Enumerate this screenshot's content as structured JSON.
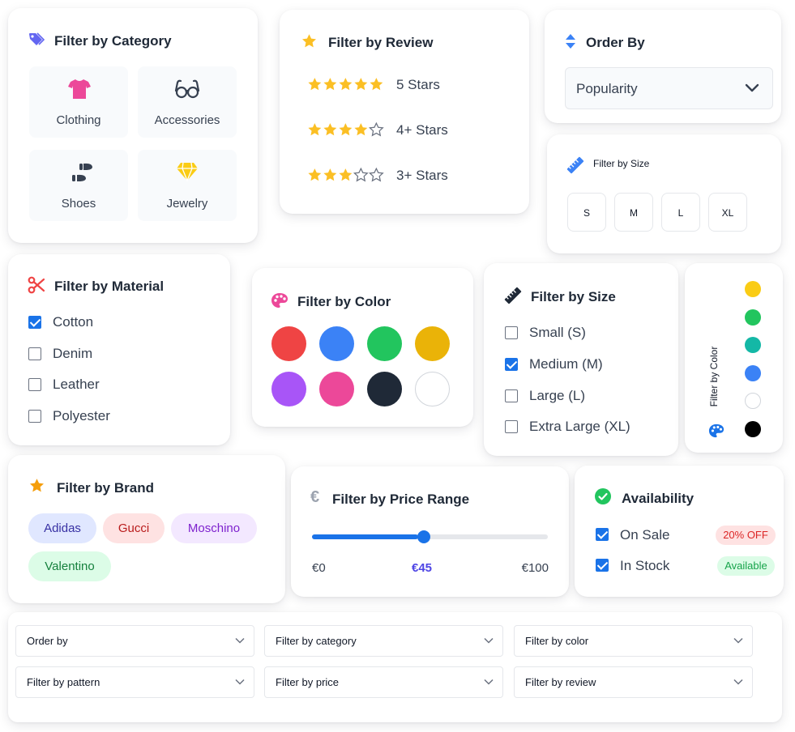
{
  "category": {
    "title": "Filter by Category",
    "icon": "tag-icon",
    "items": [
      {
        "label": "Clothing",
        "icon": "tshirt-icon"
      },
      {
        "label": "Accessories",
        "icon": "glasses-icon"
      },
      {
        "label": "Shoes",
        "icon": "shoe-prints-icon"
      },
      {
        "label": "Jewelry",
        "icon": "gem-icon"
      }
    ]
  },
  "review": {
    "title": "Filter by Review",
    "icon": "star-icon",
    "items": [
      {
        "label": "5 Stars",
        "rating": 5
      },
      {
        "label": "4+ Stars",
        "rating": 4
      },
      {
        "label": "3+ Stars",
        "rating": 3
      }
    ]
  },
  "order": {
    "title": "Order By",
    "icon": "sort-icon",
    "selected": "Popularity"
  },
  "size_small": {
    "title": "Filter by Size",
    "icon": "ruler-icon",
    "sizes": [
      "S",
      "M",
      "L",
      "XL"
    ]
  },
  "material": {
    "title": "Filter by Material",
    "icon": "scissors-icon",
    "items": [
      {
        "label": "Cotton",
        "checked": true
      },
      {
        "label": "Denim",
        "checked": false
      },
      {
        "label": "Leather",
        "checked": false
      },
      {
        "label": "Polyester",
        "checked": false
      }
    ]
  },
  "color": {
    "title": "Filter by Color",
    "icon": "palette-icon",
    "swatches": [
      "#ef4444",
      "#3b82f6",
      "#22c55e",
      "#eab308",
      "#a855f7",
      "#ec4899",
      "#1f2937",
      "#ffffff"
    ]
  },
  "size_large": {
    "title": "Filter by Size",
    "icon": "ruler-icon",
    "items": [
      {
        "label": "Small (S)",
        "checked": false
      },
      {
        "label": "Medium (M)",
        "checked": true
      },
      {
        "label": "Large (L)",
        "checked": false
      },
      {
        "label": "Extra Large (XL)",
        "checked": false
      }
    ]
  },
  "color_vertical": {
    "title": "Filter by Color",
    "icon": "palette-icon",
    "swatches": [
      "#facc15",
      "#22c55e",
      "#14b8a6",
      "#3b82f6",
      "#ffffff",
      "#000000"
    ]
  },
  "brand": {
    "title": "Filter by Brand",
    "icon": "star-icon",
    "items": [
      {
        "label": "Adidas",
        "bg": "#e0e7ff",
        "fg": "#3730a3"
      },
      {
        "label": "Gucci",
        "bg": "#fee2e2",
        "fg": "#b91c1c"
      },
      {
        "label": "Moschino",
        "bg": "#f3e8ff",
        "fg": "#7e22ce"
      },
      {
        "label": "Valentino",
        "bg": "#dcfce7",
        "fg": "#15803d"
      }
    ]
  },
  "price": {
    "title": "Filter by Price Range",
    "icon": "euro-icon",
    "min_label": "€0",
    "current_label": "€45",
    "max_label": "€100",
    "min": 0,
    "max": 100,
    "value": 45
  },
  "availability": {
    "title": "Availability",
    "icon": "check-circle-icon",
    "items": [
      {
        "label": "On Sale",
        "checked": true,
        "badge": "20% OFF",
        "badge_bg": "#fee2e2",
        "badge_fg": "#dc2626"
      },
      {
        "label": "In Stock",
        "checked": true,
        "badge": "Available",
        "badge_bg": "#dcfce7",
        "badge_fg": "#16a34a"
      }
    ]
  },
  "dropdowns": [
    "Order by",
    "Filter by category",
    "Filter by color",
    "Filter by pattern",
    "Filter by price",
    "Filter by review"
  ],
  "colors": {
    "accent": "#1a73e8",
    "star": "#fbbf24",
    "title": "#1f2937"
  }
}
